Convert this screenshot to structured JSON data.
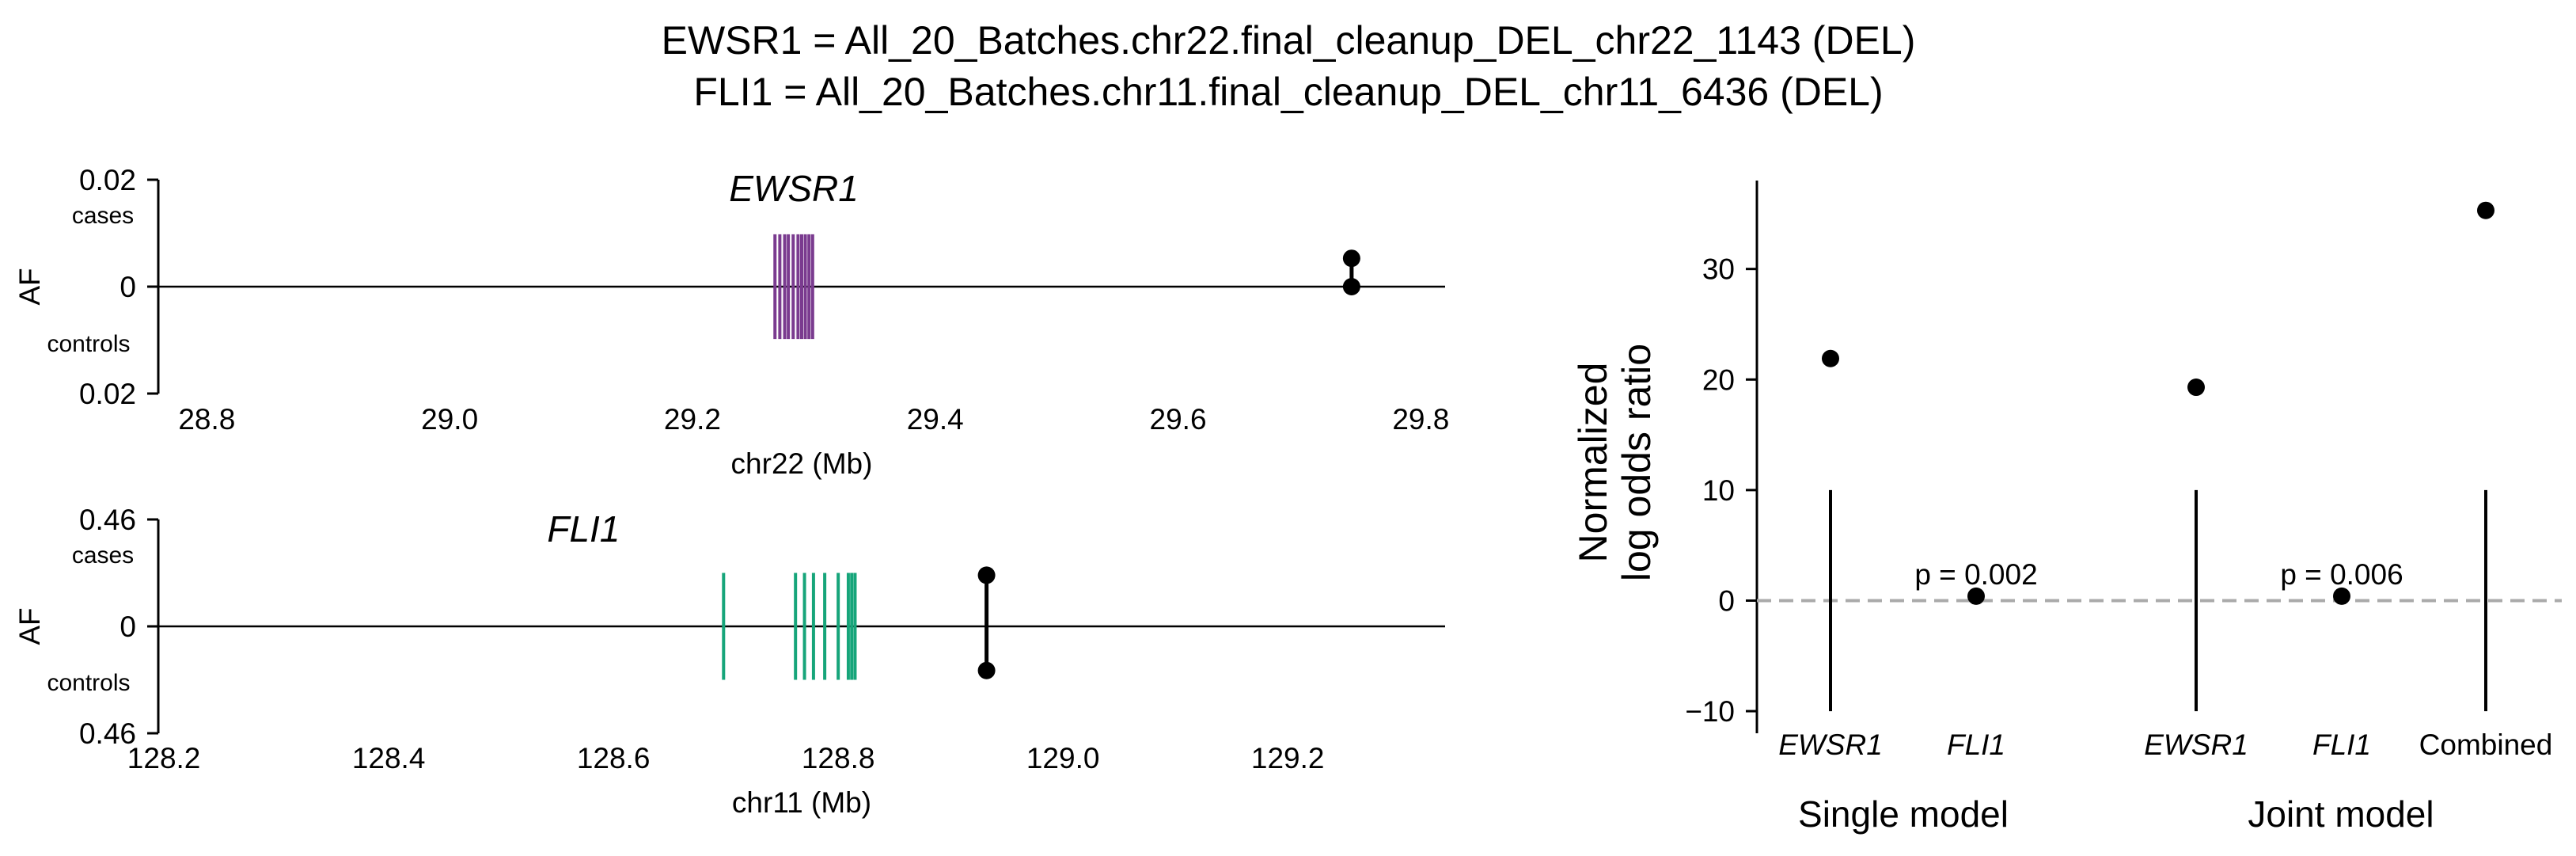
{
  "chart_data": [
    {
      "type": "locus",
      "title_lines": [
        "EWSR1 = All_20_Batches.chr22.final_cleanup_DEL_chr22_1143 (DEL)",
        "FLI1 = All_20_Batches.chr11.final_cleanup_DEL_chr11_6436 (DEL)"
      ]
    },
    {
      "type": "locus",
      "gene": "EWSR1",
      "xlabel": "chr22 (Mb)",
      "ylabel": "AF",
      "cases_label": "cases",
      "controls_label": "controls",
      "xlim": [
        28.76,
        29.82
      ],
      "xticks": [
        28.8,
        29.0,
        29.2,
        29.4,
        29.6,
        29.8
      ],
      "xtick_labels": [
        "28.8",
        "29.0",
        "29.2",
        "29.4",
        "29.6",
        "29.8"
      ],
      "ylim": [
        -0.02,
        0.02
      ],
      "yticks": [
        0.02,
        0,
        -0.02
      ],
      "ytick_labels": [
        "0.02",
        "0",
        "0.02"
      ],
      "exons_mb": [
        29.268,
        29.272,
        29.276,
        29.279,
        29.283,
        29.287,
        29.29,
        29.293,
        29.296,
        29.299
      ],
      "exon_color": "#7a3b8f",
      "exon_half_height_af": 0.0098,
      "variant": {
        "pos_mb": 29.743,
        "af_cases": 0.0053,
        "af_controls": 0.0
      }
    },
    {
      "type": "locus",
      "gene": "FLI1",
      "xlabel": "chr11 (Mb)",
      "ylabel": "AF",
      "cases_label": "cases",
      "controls_label": "controls",
      "xlim": [
        128.195,
        129.34
      ],
      "xticks": [
        128.2,
        128.4,
        128.6,
        128.8,
        129.0,
        129.2
      ],
      "xtick_labels": [
        "128.2",
        "128.4",
        "128.6",
        "128.8",
        "129.0",
        "129.2"
      ],
      "ylim": [
        -0.46,
        0.46
      ],
      "yticks": [
        0.46,
        0,
        -0.46
      ],
      "ytick_labels": [
        "0.46",
        "0",
        "0.46"
      ],
      "exons_mb": [
        128.698,
        128.762,
        128.77,
        128.778,
        128.788,
        128.8,
        128.809,
        128.812,
        128.815
      ],
      "exon_color": "#16a57a",
      "exon_half_height_af": 0.23,
      "variant": {
        "pos_mb": 128.932,
        "af_cases": 0.22,
        "af_controls": -0.19
      }
    },
    {
      "type": "scatter",
      "ylabel_lines": [
        "Normalized",
        "log odds ratio"
      ],
      "ylim": [
        -12,
        38
      ],
      "yticks": [
        -10,
        0,
        10,
        20,
        30
      ],
      "ytick_labels": [
        "−10",
        "0",
        "10",
        "20",
        "30"
      ],
      "reference_line_y": 0,
      "vline_top_y": 10,
      "categories": [
        "EWSR1",
        "FLI1",
        "EWSR1",
        "FLI1",
        "Combined"
      ],
      "italic_categories": [
        true,
        true,
        true,
        true,
        false
      ],
      "values": [
        21.9,
        0.4,
        19.3,
        0.4,
        35.3
      ],
      "vline_categories": [
        0,
        2,
        4
      ],
      "p_value_labels": [
        {
          "category": 1,
          "text": "p = 0.002"
        },
        {
          "category": 3,
          "text": "p = 0.006"
        }
      ],
      "groups": [
        {
          "label": "Single model",
          "categories": [
            0,
            1
          ]
        },
        {
          "label": "Joint model",
          "categories": [
            2,
            3,
            4
          ]
        }
      ]
    }
  ]
}
